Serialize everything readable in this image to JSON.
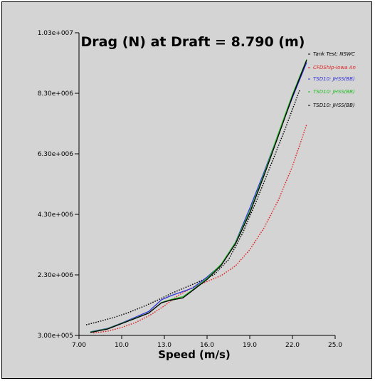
{
  "chart_data": {
    "type": "line",
    "title": "Drag (N) at Draft =  8.790 (m)",
    "xlabel": "Speed (m/s)",
    "ylabel": "",
    "xlim": [
      7.0,
      25.0
    ],
    "ylim": [
      300000,
      10300000
    ],
    "x_ticks": [
      "7.00",
      "10.0",
      "13.0",
      "16.0",
      "19.0",
      "22.0",
      "25.0"
    ],
    "x_tick_values": [
      7,
      10,
      13,
      16,
      19,
      22,
      25
    ],
    "y_ticks": [
      "3.00e+005",
      "2.30e+006",
      "4.30e+006",
      "6.30e+006",
      "8.30e+006",
      "1.03e+007"
    ],
    "y_tick_values": [
      300000,
      2300000,
      4300000,
      6300000,
      8300000,
      10300000
    ],
    "grid": false,
    "legend_position": "top-right",
    "series": [
      {
        "name": "Tank Test; NSWC",
        "color": "#000000",
        "dash": "dotted",
        "x": [
          7.5,
          8.5,
          9.5,
          10.5,
          11.5,
          12.5,
          13.5,
          14.5,
          15.5,
          16.5,
          17.5,
          18.5,
          19.5,
          20.5,
          21.5,
          22.5
        ],
        "y": [
          650000,
          770000,
          900000,
          1060000,
          1250000,
          1460000,
          1690000,
          1890000,
          2090000,
          2310000,
          2800000,
          3680000,
          4780000,
          5950000,
          7140000,
          8400000
        ]
      },
      {
        "name": "CFDShip-Iowa An",
        "color": "#e02020",
        "dash": "dotted",
        "x": [
          8,
          9,
          10,
          11,
          12,
          13,
          14,
          15,
          16,
          17,
          18,
          19,
          20,
          21,
          22,
          23
        ],
        "y": [
          380000,
          440000,
          560000,
          730000,
          970000,
          1280000,
          1630000,
          1890000,
          2080000,
          2280000,
          2600000,
          3130000,
          3850000,
          4760000,
          5890000,
          7270000
        ]
      },
      {
        "name": "TSD10: JHSS(BB)",
        "color": "#3333dd",
        "dash": "solid",
        "x": [
          7.8,
          9,
          10,
          11,
          11.9,
          12.8,
          13.5,
          14.3,
          15,
          16,
          17,
          18,
          19,
          20,
          21,
          22,
          23
        ],
        "y": [
          420000,
          530000,
          710000,
          910000,
          1090000,
          1480000,
          1620000,
          1750000,
          1870000,
          2230000,
          2640000,
          3380000,
          4500000,
          5690000,
          6940000,
          8160000,
          9320000
        ]
      },
      {
        "name": "TSD10: JHSS(BB)",
        "color": "#22bb22",
        "dash": "solid",
        "x": [
          7.8,
          9,
          10,
          11,
          11.9,
          12.8,
          13.5,
          14.3,
          15,
          16,
          17,
          18,
          19,
          20,
          21,
          22,
          23
        ],
        "y": [
          410000,
          520000,
          700000,
          880000,
          1040000,
          1390000,
          1490000,
          1580000,
          1810000,
          2190000,
          2660000,
          3370000,
          4400000,
          5630000,
          6960000,
          8260000,
          9420000
        ]
      },
      {
        "name": "TSD10: JHSS(BB)",
        "color": "#000000",
        "dash": "solid",
        "x": [
          7.8,
          9,
          10,
          11,
          11.9,
          12.8,
          13.5,
          14.3,
          15,
          16,
          17,
          18,
          19,
          20,
          21,
          22,
          23
        ],
        "y": [
          400000,
          510000,
          690000,
          870000,
          1040000,
          1380000,
          1470000,
          1540000,
          1790000,
          2150000,
          2620000,
          3330000,
          4340000,
          5580000,
          6880000,
          8200000,
          9400000
        ]
      }
    ]
  }
}
